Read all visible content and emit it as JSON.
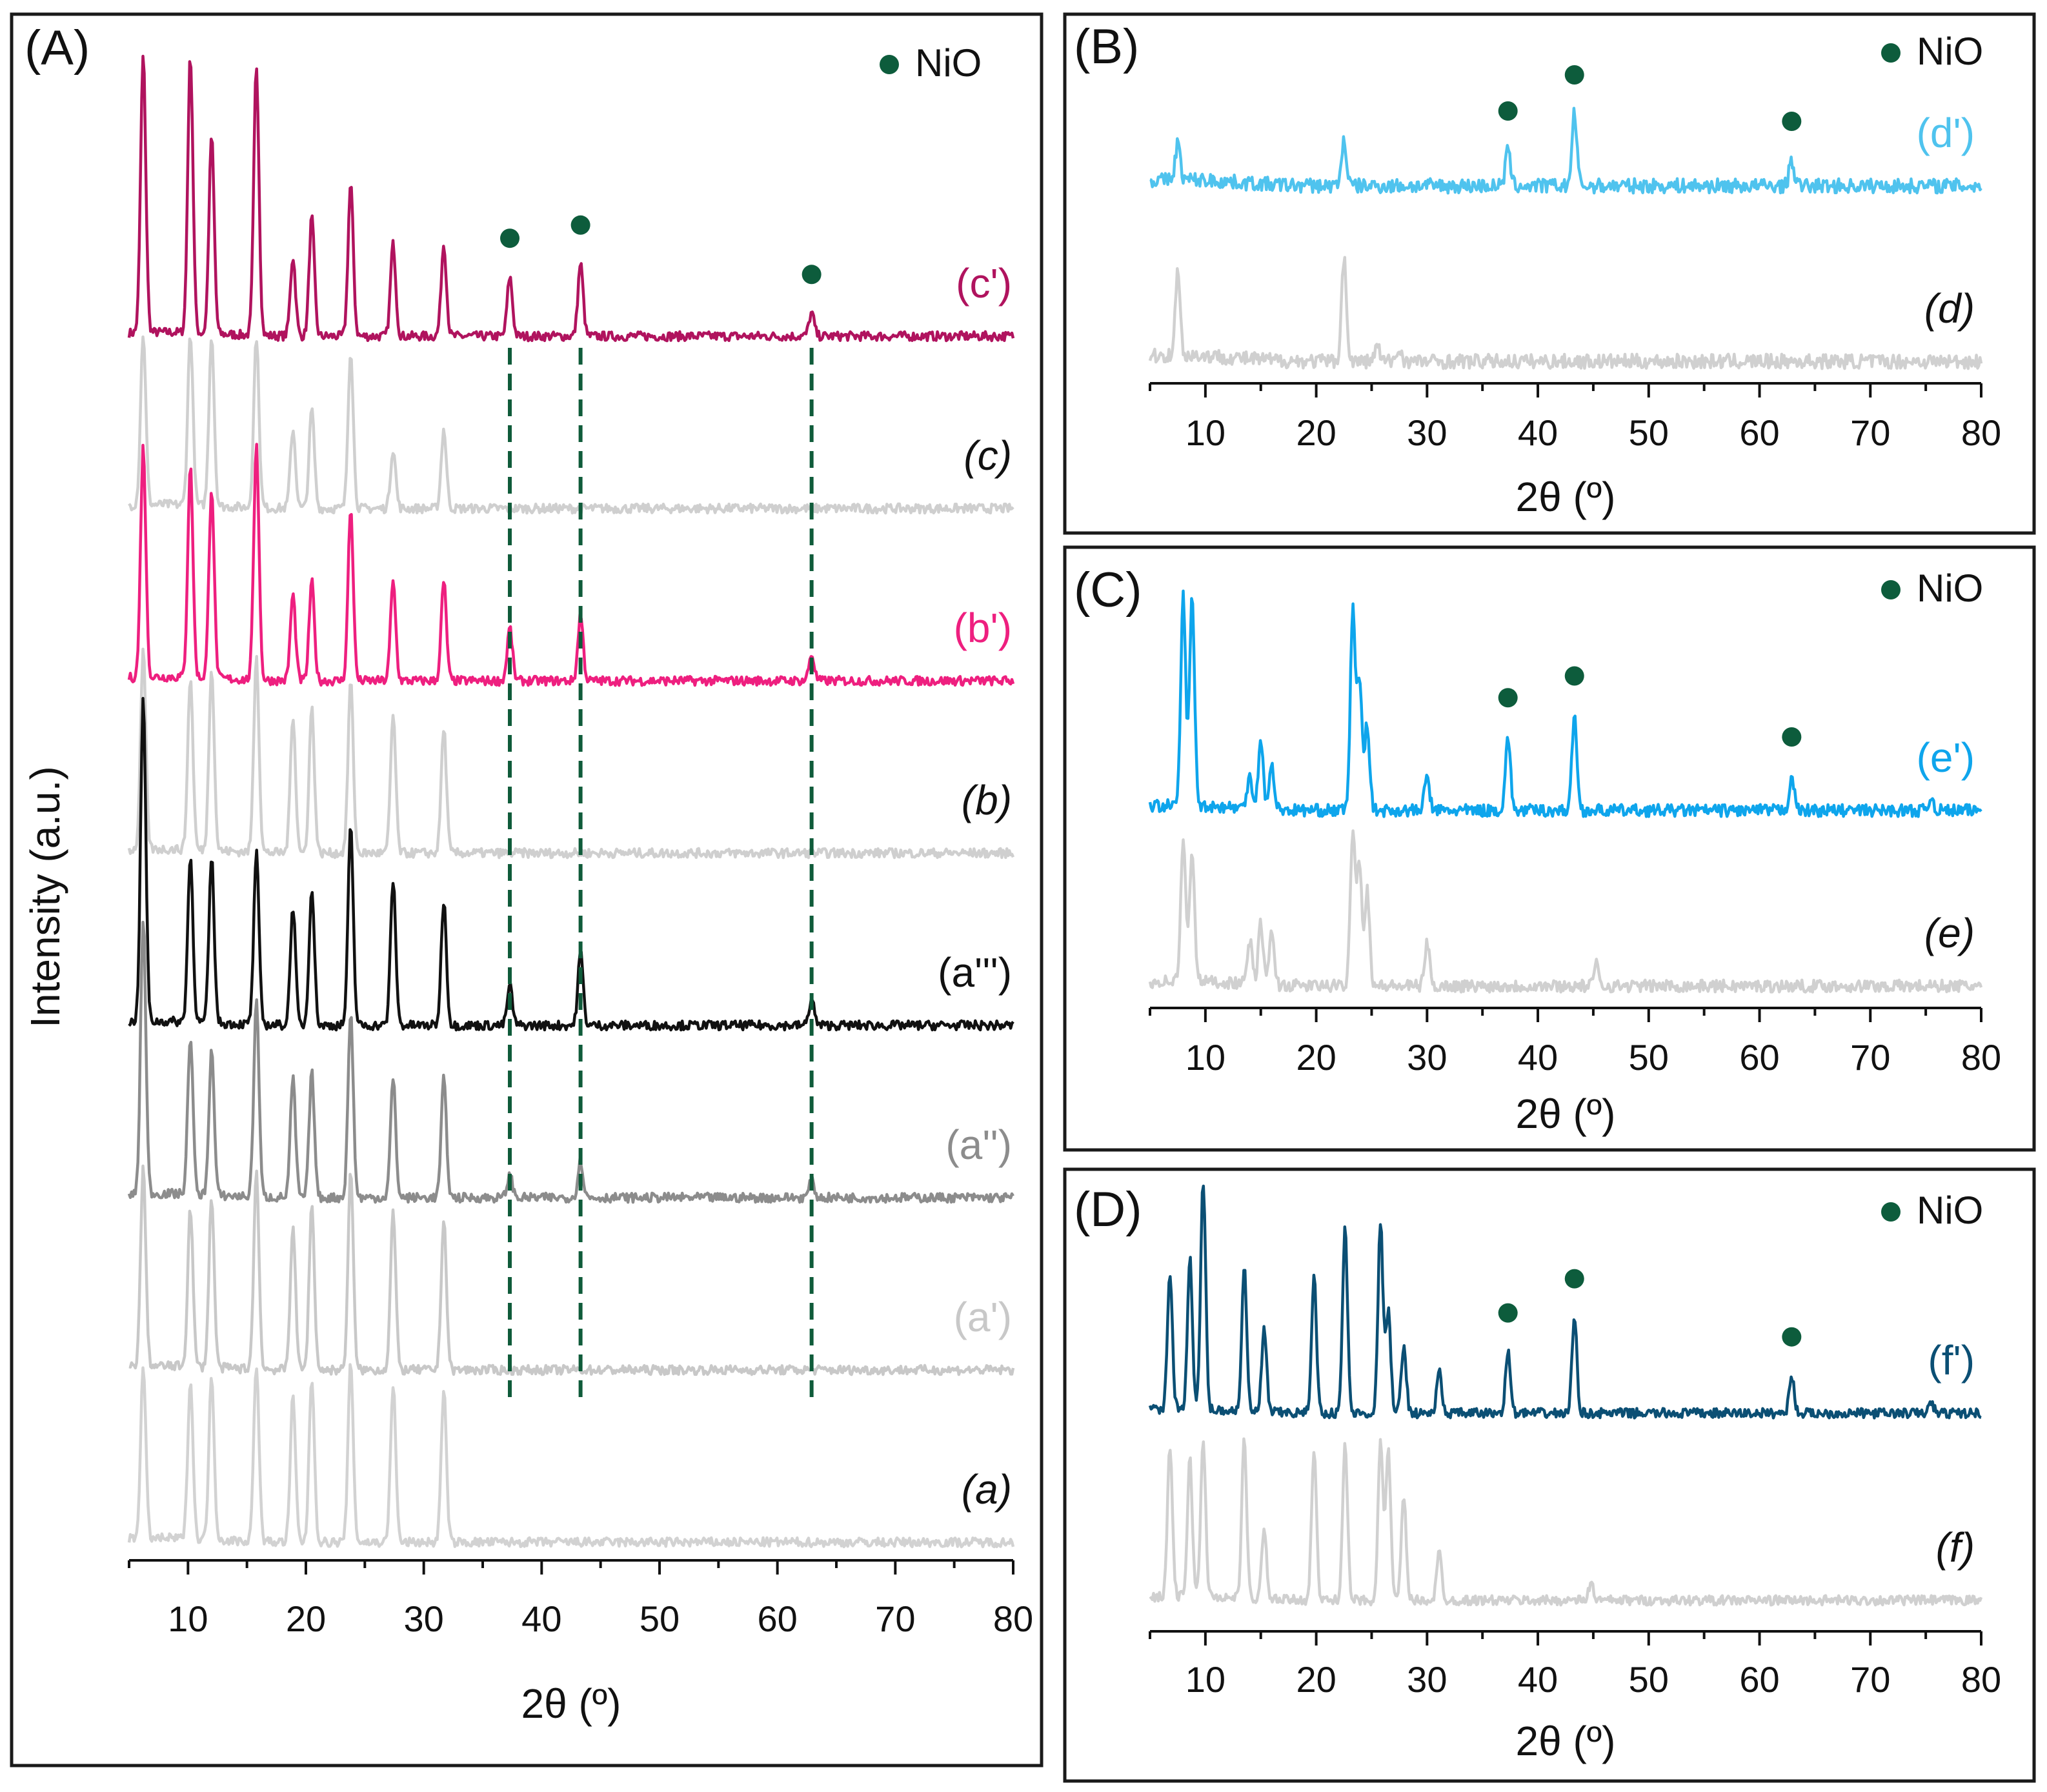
{
  "chart_data": [
    {
      "panel": "(A)",
      "type": "line",
      "xlabel": "2θ (º)",
      "ylabel": "Intensity (a.u.)",
      "xlim": [
        5,
        80
      ],
      "xticks": [
        10,
        20,
        30,
        40,
        50,
        60,
        70,
        80
      ],
      "legend": {
        "marker": "●",
        "label": "NiO",
        "color": "#0d5c3c",
        "position": "top-right"
      },
      "nio_peaks_2theta": [
        37.3,
        43.3,
        62.9
      ],
      "dashed_guides_2theta": [
        37.3,
        43.3,
        62.9
      ],
      "series": [
        {
          "name": "(c')",
          "italic": false,
          "color": "#b0135e",
          "baseline_rank": 7,
          "peaks": [
            [
              6.2,
              420
            ],
            [
              10.2,
              420
            ],
            [
              12.0,
              300
            ],
            [
              15.8,
              410
            ],
            [
              18.9,
              120
            ],
            [
              20.5,
              180
            ],
            [
              23.8,
              230
            ],
            [
              27.4,
              140
            ],
            [
              31.7,
              140
            ],
            [
              37.3,
              90
            ],
            [
              43.3,
              110
            ],
            [
              62.9,
              35
            ]
          ]
        },
        {
          "name": "(c)",
          "italic": true,
          "color": "#cfcfcf",
          "baseline_rank": 6,
          "peaks": [
            [
              6.2,
              260
            ],
            [
              10.2,
              260
            ],
            [
              12.0,
              260
            ],
            [
              15.8,
              260
            ],
            [
              18.9,
              120
            ],
            [
              20.5,
              150
            ],
            [
              23.8,
              240
            ],
            [
              27.4,
              90
            ],
            [
              31.7,
              120
            ]
          ]
        },
        {
          "name": "(b')",
          "italic": false,
          "color": "#ee1f7f",
          "baseline_rank": 5,
          "peaks": [
            [
              6.2,
              350
            ],
            [
              10.2,
              320
            ],
            [
              12.0,
              290
            ],
            [
              15.8,
              360
            ],
            [
              18.9,
              130
            ],
            [
              20.5,
              150
            ],
            [
              23.8,
              260
            ],
            [
              27.4,
              150
            ],
            [
              31.7,
              150
            ],
            [
              37.3,
              80
            ],
            [
              43.3,
              100
            ],
            [
              62.9,
              40
            ]
          ]
        },
        {
          "name": "(b)",
          "italic": true,
          "color": "#cfcfcf",
          "baseline_rank": 4,
          "peaks": [
            [
              6.2,
              300
            ],
            [
              10.2,
              260
            ],
            [
              12.0,
              280
            ],
            [
              15.8,
              300
            ],
            [
              18.9,
              210
            ],
            [
              20.5,
              220
            ],
            [
              23.8,
              260
            ],
            [
              27.4,
              210
            ],
            [
              31.7,
              190
            ]
          ]
        },
        {
          "name": "(a''')",
          "italic": false,
          "color": "#111111",
          "baseline_rank": 3,
          "peaks": [
            [
              6.2,
              490
            ],
            [
              10.2,
              250
            ],
            [
              12.0,
              250
            ],
            [
              15.8,
              260
            ],
            [
              18.9,
              180
            ],
            [
              20.5,
              210
            ],
            [
              23.8,
              300
            ],
            [
              27.4,
              220
            ],
            [
              31.7,
              190
            ],
            [
              37.3,
              60
            ],
            [
              43.3,
              110
            ],
            [
              62.9,
              40
            ]
          ]
        },
        {
          "name": "(a'')",
          "italic": false,
          "color": "#8c8c8c",
          "baseline_rank": 2,
          "peaks": [
            [
              6.2,
              420
            ],
            [
              10.2,
              240
            ],
            [
              12.0,
              220
            ],
            [
              15.8,
              300
            ],
            [
              18.9,
              180
            ],
            [
              20.5,
              190
            ],
            [
              23.8,
              280
            ],
            [
              27.4,
              180
            ],
            [
              31.7,
              180
            ],
            [
              37.3,
              35
            ],
            [
              43.3,
              55
            ],
            [
              62.9,
              25
            ]
          ]
        },
        {
          "name": "(a')",
          "italic": false,
          "color": "#c8c8c8",
          "baseline_rank": 1,
          "peaks": [
            [
              6.2,
              300
            ],
            [
              10.2,
              240
            ],
            [
              12.0,
              260
            ],
            [
              15.8,
              300
            ],
            [
              18.9,
              220
            ],
            [
              20.5,
              250
            ],
            [
              23.8,
              300
            ],
            [
              27.4,
              240
            ],
            [
              31.7,
              230
            ]
          ]
        },
        {
          "name": "(a)",
          "italic": true,
          "color": "#d2d2d2",
          "baseline_rank": 0,
          "peaks": [
            [
              6.2,
              260
            ],
            [
              10.2,
              240
            ],
            [
              12.0,
              250
            ],
            [
              15.8,
              270
            ],
            [
              18.9,
              220
            ],
            [
              20.5,
              250
            ],
            [
              23.8,
              270
            ],
            [
              27.4,
              240
            ],
            [
              31.7,
              230
            ]
          ]
        }
      ]
    },
    {
      "panel": "(B)",
      "type": "line",
      "xlabel": "2θ (º)",
      "xlim": [
        5,
        80
      ],
      "xticks": [
        10,
        20,
        30,
        40,
        50,
        60,
        70,
        80
      ],
      "legend": {
        "marker": "●",
        "label": "NiO",
        "color": "#0d5c3c",
        "position": "top-right"
      },
      "nio_peaks_2theta": [
        37.3,
        43.3,
        62.9
      ],
      "series": [
        {
          "name": "(d')",
          "italic": false,
          "color": "#4fc3ee",
          "baseline_rank": 1,
          "peaks": [
            [
              7.5,
              35
            ],
            [
              22.5,
              45
            ],
            [
              37.3,
              35
            ],
            [
              43.3,
              70
            ],
            [
              62.9,
              25
            ]
          ]
        },
        {
          "name": "(d)",
          "italic": true,
          "color": "#d0d0d0",
          "baseline_rank": 0,
          "peaks": [
            [
              7.5,
              80
            ],
            [
              22.5,
              100
            ],
            [
              25.5,
              15
            ],
            [
              27.5,
              12
            ]
          ]
        }
      ]
    },
    {
      "panel": "(C)",
      "type": "line",
      "xlabel": "2θ (º)",
      "xlim": [
        5,
        80
      ],
      "xticks": [
        10,
        20,
        30,
        40,
        50,
        60,
        70,
        80
      ],
      "legend": {
        "marker": "●",
        "label": "NiO",
        "color": "#0d5c3c",
        "position": "top-right"
      },
      "nio_peaks_2theta": [
        37.3,
        43.3,
        62.9
      ],
      "series": [
        {
          "name": "(e')",
          "italic": false,
          "color": "#0ea5ec",
          "baseline_rank": 1,
          "peaks": [
            [
              8.0,
              240
            ],
            [
              8.8,
              240
            ],
            [
              14.0,
              40
            ],
            [
              15.0,
              80
            ],
            [
              16.0,
              50
            ],
            [
              23.3,
              230
            ],
            [
              23.9,
              150
            ],
            [
              24.6,
              100
            ],
            [
              30.0,
              40
            ],
            [
              37.3,
              85
            ],
            [
              43.3,
              110
            ],
            [
              62.9,
              40
            ],
            [
              75.5,
              15
            ]
          ]
        },
        {
          "name": "(e)",
          "italic": true,
          "color": "#d0d0d0",
          "baseline_rank": 0,
          "peaks": [
            [
              8.0,
              160
            ],
            [
              8.8,
              150
            ],
            [
              14.0,
              50
            ],
            [
              15.0,
              70
            ],
            [
              16.0,
              60
            ],
            [
              23.3,
              180
            ],
            [
              23.9,
              140
            ],
            [
              24.6,
              110
            ],
            [
              30.0,
              50
            ],
            [
              45.3,
              25
            ]
          ]
        }
      ]
    },
    {
      "panel": "(D)",
      "type": "line",
      "xlabel": "2θ (º)",
      "xlim": [
        5,
        80
      ],
      "xticks": [
        10,
        20,
        30,
        40,
        50,
        60,
        70,
        80
      ],
      "legend": {
        "marker": "●",
        "label": "NiO",
        "color": "#0d5c3c",
        "position": "top-right"
      },
      "nio_peaks_2theta": [
        37.3,
        43.3,
        62.9
      ],
      "series": [
        {
          "name": "(f')",
          "italic": false,
          "color": "#0b4f74",
          "baseline_rank": 1,
          "peaks": [
            [
              6.8,
              200
            ],
            [
              8.6,
              220
            ],
            [
              9.8,
              340
            ],
            [
              13.5,
              210
            ],
            [
              15.3,
              120
            ],
            [
              19.8,
              200
            ],
            [
              22.6,
              270
            ],
            [
              25.8,
              280
            ],
            [
              26.5,
              150
            ],
            [
              27.9,
              100
            ],
            [
              31.1,
              60
            ],
            [
              37.3,
              90
            ],
            [
              43.3,
              140
            ],
            [
              62.9,
              55
            ],
            [
              75.5,
              15
            ]
          ]
        },
        {
          "name": "(f)",
          "italic": true,
          "color": "#d0d0d0",
          "baseline_rank": 0,
          "peaks": [
            [
              6.8,
              220
            ],
            [
              8.6,
              200
            ],
            [
              9.8,
              230
            ],
            [
              13.5,
              230
            ],
            [
              15.3,
              100
            ],
            [
              19.8,
              220
            ],
            [
              22.6,
              230
            ],
            [
              25.8,
              230
            ],
            [
              26.5,
              220
            ],
            [
              27.9,
              150
            ],
            [
              31.1,
              70
            ],
            [
              44.8,
              25
            ]
          ]
        }
      ]
    }
  ]
}
